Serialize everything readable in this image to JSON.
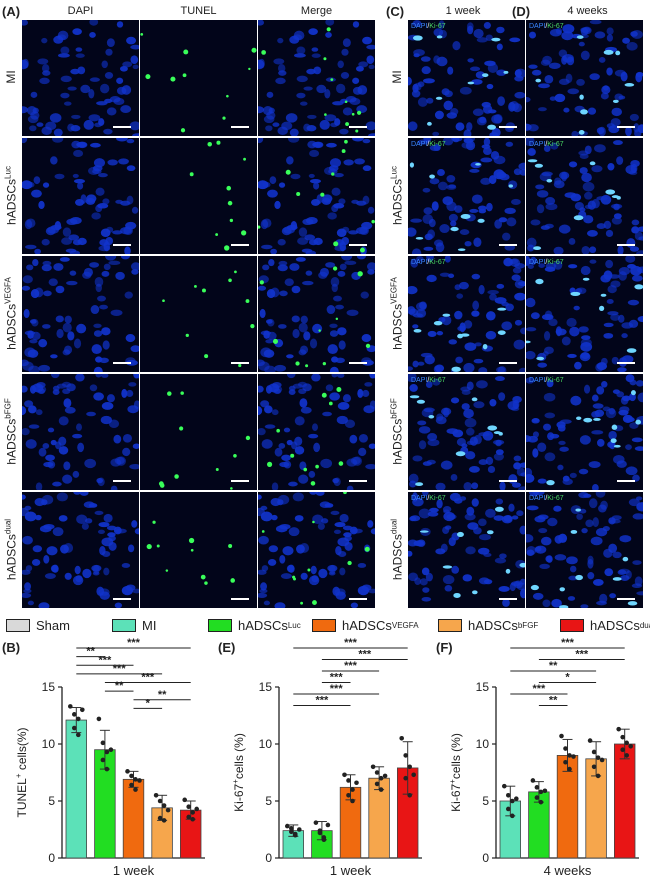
{
  "panel_letters": {
    "A": "(A)",
    "C": "(C)",
    "D": "(D)",
    "B": "(B)",
    "E": "(E)",
    "F": "(F)"
  },
  "columns_A": [
    "DAPI",
    "TUNEL",
    "Merge"
  ],
  "col_C": "1 week",
  "col_D": "4 weeks",
  "rows": [
    {
      "base": "MI",
      "sup": ""
    },
    {
      "base": "hADSCs",
      "sup": "Luc"
    },
    {
      "base": "hADSCs",
      "sup": "VEGFA"
    },
    {
      "base": "hADSCs",
      "sup": "bFGF"
    },
    {
      "base": "hADSCs",
      "sup": "dual"
    }
  ],
  "ki_label": {
    "dapi": "DAPI",
    "slash": "/",
    "ki": "Ki-67"
  },
  "colors": {
    "Sham": "#d9d9d9",
    "MI": "#5ce1b8",
    "Luc": "#22dd22",
    "VEGFA": "#f06a0f",
    "bFGF": "#f6a64c",
    "dual": "#e81515",
    "nuclei": "#1133cc",
    "signal": "#39ff5a",
    "ki67": "#6fd6ff"
  },
  "legend": [
    {
      "base": "Sham",
      "sup": "",
      "color": "#d9d9d9"
    },
    {
      "base": "MI",
      "sup": "",
      "color": "#5ce1b8"
    },
    {
      "base": "hADSCs",
      "sup": "Luc",
      "color": "#22dd22"
    },
    {
      "base": "hADSCs",
      "sup": "VEGFA",
      "color": "#f06a0f"
    },
    {
      "base": "hADSCs",
      "sup": "bFGF",
      "color": "#f6a64c"
    },
    {
      "base": "hADSCs",
      "sup": "dual",
      "color": "#e81515"
    }
  ],
  "chart_data": [
    {
      "panel": "B",
      "type": "bar",
      "ylabel_base": "TUNEL",
      "ylabel_sup": "+",
      "ylabel_tail": " cells(%)",
      "xlabel": "1 week",
      "ylim": [
        0,
        15
      ],
      "yticks": [
        0,
        5,
        10,
        15
      ],
      "series": [
        {
          "group": "MI",
          "color": "#5ce1b8",
          "value": 12.1,
          "error": 1.1,
          "points": [
            13.3,
            12.6,
            12.2,
            11.4,
            10.8,
            13.0
          ]
        },
        {
          "group": "Luc",
          "color": "#22dd22",
          "value": 9.5,
          "error": 1.7,
          "points": [
            12.2,
            10.1,
            9.3,
            8.6,
            7.8,
            9.5
          ]
        },
        {
          "group": "VEGFA",
          "color": "#f06a0f",
          "value": 6.9,
          "error": 0.7,
          "points": [
            7.6,
            7.2,
            6.9,
            6.4,
            6.0,
            6.8
          ]
        },
        {
          "group": "bFGF",
          "color": "#f6a64c",
          "value": 4.4,
          "error": 1.1,
          "points": [
            5.5,
            5.0,
            4.6,
            3.5,
            3.3,
            4.2
          ]
        },
        {
          "group": "dual",
          "color": "#e81515",
          "value": 4.2,
          "error": 0.8,
          "points": [
            5.1,
            4.5,
            4.0,
            3.6,
            3.4,
            4.3
          ]
        }
      ],
      "significance": [
        {
          "from": 0,
          "to": 4,
          "label": "***"
        },
        {
          "from": 0,
          "to": 1,
          "label": "**"
        },
        {
          "from": 0,
          "to": 2,
          "label": "***"
        },
        {
          "from": 0,
          "to": 3,
          "label": "***"
        },
        {
          "from": 1,
          "to": 4,
          "label": "***"
        },
        {
          "from": 1,
          "to": 2,
          "label": "**"
        },
        {
          "from": 2,
          "to": 4,
          "label": "**"
        },
        {
          "from": 2,
          "to": 3,
          "label": "*"
        }
      ]
    },
    {
      "panel": "E",
      "type": "bar",
      "ylabel_base": "Ki-67",
      "ylabel_sup": "+",
      "ylabel_tail": "cells (%)",
      "xlabel": "1 week",
      "ylim": [
        0,
        15
      ],
      "yticks": [
        0,
        5,
        10,
        15
      ],
      "series": [
        {
          "group": "MI",
          "color": "#5ce1b8",
          "value": 2.4,
          "error": 0.5,
          "points": [
            2.8,
            2.3,
            2.1,
            2.6,
            2.0,
            2.5
          ]
        },
        {
          "group": "Luc",
          "color": "#22dd22",
          "value": 2.4,
          "error": 0.8,
          "points": [
            3.1,
            2.4,
            1.8,
            2.2,
            1.6,
            2.9
          ]
        },
        {
          "group": "VEGFA",
          "color": "#f06a0f",
          "value": 6.2,
          "error": 1.1,
          "points": [
            7.3,
            6.8,
            6.0,
            5.5,
            5.0,
            6.6
          ]
        },
        {
          "group": "bFGF",
          "color": "#f6a64c",
          "value": 7.0,
          "error": 1.0,
          "points": [
            8.0,
            7.5,
            7.0,
            6.5,
            6.0,
            7.2
          ]
        },
        {
          "group": "dual",
          "color": "#e81515",
          "value": 7.9,
          "error": 2.3,
          "points": [
            10.5,
            9.0,
            8.0,
            7.0,
            5.5,
            7.3
          ]
        }
      ],
      "significance": [
        {
          "from": 0,
          "to": 4,
          "label": "***"
        },
        {
          "from": 1,
          "to": 4,
          "label": "***"
        },
        {
          "from": 1,
          "to": 3,
          "label": "***"
        },
        {
          "from": 1,
          "to": 2,
          "label": "***"
        },
        {
          "from": 0,
          "to": 3,
          "label": "***"
        },
        {
          "from": 0,
          "to": 2,
          "label": "***"
        }
      ]
    },
    {
      "panel": "F",
      "type": "bar",
      "ylabel_base": "Ki-67",
      "ylabel_sup": "+",
      "ylabel_tail": "cells (%)",
      "xlabel": "4 weeks",
      "ylim": [
        0,
        15
      ],
      "yticks": [
        0,
        5,
        10,
        15
      ],
      "series": [
        {
          "group": "MI",
          "color": "#5ce1b8",
          "value": 5.0,
          "error": 1.3,
          "points": [
            6.3,
            5.5,
            5.0,
            4.3,
            3.7,
            5.2
          ]
        },
        {
          "group": "Luc",
          "color": "#22dd22",
          "value": 5.8,
          "error": 0.9,
          "points": [
            6.8,
            6.2,
            5.8,
            5.3,
            4.9,
            5.9
          ]
        },
        {
          "group": "VEGFA",
          "color": "#f06a0f",
          "value": 9.0,
          "error": 1.4,
          "points": [
            10.7,
            9.6,
            9.0,
            8.4,
            7.8,
            8.9
          ]
        },
        {
          "group": "bFGF",
          "color": "#f6a64c",
          "value": 8.7,
          "error": 1.5,
          "points": [
            10.3,
            9.3,
            8.8,
            8.0,
            7.2,
            8.6
          ]
        },
        {
          "group": "dual",
          "color": "#e81515",
          "value": 10.0,
          "error": 1.3,
          "points": [
            11.3,
            10.6,
            10.1,
            9.5,
            9.0,
            9.8
          ]
        }
      ],
      "significance": [
        {
          "from": 0,
          "to": 4,
          "label": "***"
        },
        {
          "from": 1,
          "to": 4,
          "label": "***"
        },
        {
          "from": 0,
          "to": 3,
          "label": "**"
        },
        {
          "from": 1,
          "to": 3,
          "label": "*"
        },
        {
          "from": 0,
          "to": 2,
          "label": "***"
        },
        {
          "from": 1,
          "to": 2,
          "label": "**"
        }
      ]
    }
  ]
}
